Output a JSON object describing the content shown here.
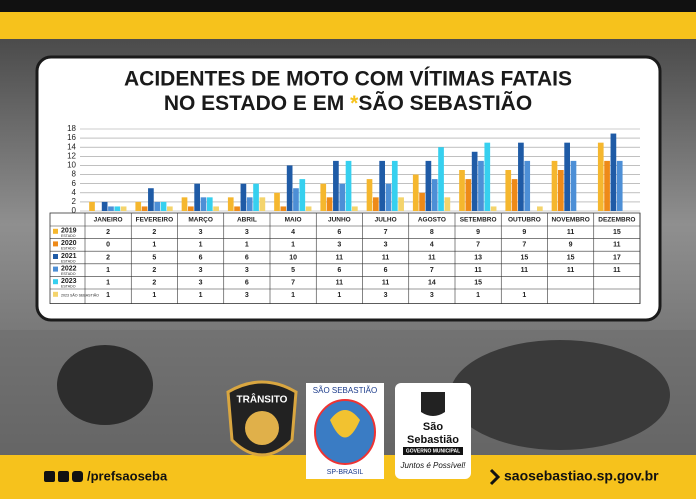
{
  "chart_data": {
    "type": "bar",
    "title": "ACIDENTES DE MOTO COM VÍTIMAS FATAIS",
    "title_line2": "NO ESTADO E EM",
    "title_mark": "*",
    "title_place": "SÃO SEBASTIÃO",
    "categories": [
      "JANEIRO",
      "FEVEREIRO",
      "MARÇO",
      "ABRIL",
      "MAIO",
      "JUNHO",
      "JULHO",
      "AGOSTO",
      "SETEMBRO",
      "OUTUBRO",
      "NOVEMBRO",
      "DEZEMBRO"
    ],
    "series": [
      {
        "name": "2019",
        "note": "ESTADO",
        "color": "#f5b72e",
        "values": [
          2,
          2,
          3,
          3,
          4,
          6,
          7,
          8,
          9,
          9,
          11,
          15
        ]
      },
      {
        "name": "2020",
        "note": "ESTADO",
        "color": "#ee8a18",
        "values": [
          0,
          1,
          1,
          1,
          1,
          3,
          3,
          4,
          7,
          7,
          9,
          11
        ]
      },
      {
        "name": "2021",
        "note": "ESTADO",
        "color": "#1f5ba6",
        "values": [
          2,
          5,
          6,
          6,
          10,
          11,
          11,
          11,
          13,
          15,
          15,
          17
        ]
      },
      {
        "name": "2022",
        "note": "ESTADO",
        "color": "#4d8fd6",
        "values": [
          1,
          2,
          3,
          3,
          5,
          6,
          6,
          7,
          11,
          11,
          11,
          11
        ]
      },
      {
        "name": "2023",
        "note": "ESTADO",
        "color": "#36d0ef",
        "values": [
          1,
          2,
          3,
          6,
          7,
          11,
          11,
          14,
          15,
          null,
          null,
          null
        ]
      },
      {
        "name": "2023 SÃO SEBASTIÃO",
        "color": "#f4d46c",
        "values": [
          1,
          1,
          1,
          3,
          1,
          1,
          3,
          3,
          1,
          1,
          null,
          null
        ]
      }
    ],
    "ylim": [
      0,
      18
    ],
    "yticks": [
      0,
      2,
      4,
      6,
      8,
      10,
      12,
      14,
      16,
      18
    ],
    "grid": true
  },
  "footer": {
    "social": "/prefsaoseba",
    "website": "saosebastiao.sp.gov.br"
  },
  "logos": {
    "transito": "TRÂNSITO",
    "emblem_top": "SÃO SEBASTIÃO",
    "emblem_bottom": "SP-BRASIL",
    "gov_name_1": "São",
    "gov_name_2": "Sebastião",
    "gov_tag": "GOVERNO MUNICIPAL",
    "slogan": "Juntos é Possível!"
  }
}
